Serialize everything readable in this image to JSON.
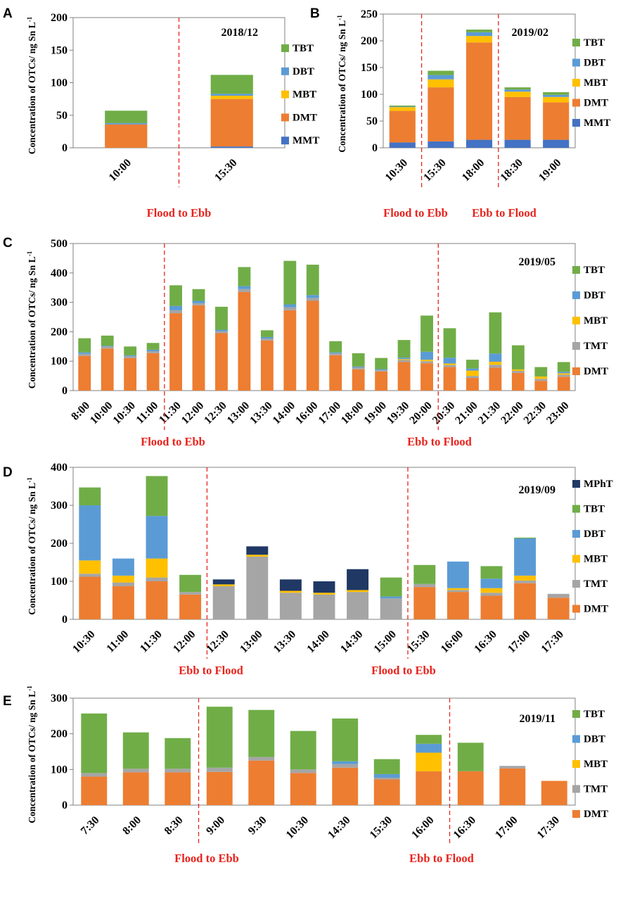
{
  "figure": {
    "ylabel": "Concentration of  OTCs/ ng Sn L",
    "ylabel_sup": "-1"
  },
  "colors": {
    "MMT": "#4472c4",
    "DMT": "#ed7d31",
    "TMT": "#a5a5a5",
    "MBT": "#ffc000",
    "DBT": "#5b9bd5",
    "TBT": "#70ad47",
    "MPhT": "#203864",
    "divider": "#e8231d",
    "tide_text": "#e8231d"
  },
  "chart_data": [
    {
      "panel": "A",
      "type": "bar",
      "stacked": true,
      "title": "2018/12",
      "ylim": [
        0,
        200
      ],
      "yticks": [
        0,
        50,
        100,
        150,
        200
      ],
      "categories": [
        "10:00",
        "15:30"
      ],
      "series": [
        {
          "name": "MMT",
          "values": [
            0,
            2
          ]
        },
        {
          "name": "DMT",
          "values": [
            36,
            73
          ]
        },
        {
          "name": "MBT",
          "values": [
            0,
            5
          ]
        },
        {
          "name": "DBT",
          "values": [
            2,
            3
          ]
        },
        {
          "name": "TBT",
          "values": [
            19,
            29
          ]
        }
      ],
      "legend": [
        "TBT",
        "DBT",
        "MBT",
        "DMT",
        "MMT"
      ],
      "dividers_after": [
        0
      ],
      "tide_labels": [
        "Flood to Ebb"
      ]
    },
    {
      "panel": "B",
      "type": "bar",
      "stacked": true,
      "title": "2019/02",
      "ylim": [
        0,
        250
      ],
      "yticks": [
        0,
        50,
        100,
        150,
        200,
        250
      ],
      "categories": [
        "10:30",
        "15:30",
        "18:00",
        "18:30",
        "19:00"
      ],
      "series": [
        {
          "name": "MMT",
          "values": [
            10,
            12,
            15,
            15,
            15
          ]
        },
        {
          "name": "DMT",
          "values": [
            59,
            101,
            182,
            80,
            70
          ]
        },
        {
          "name": "MBT",
          "values": [
            7,
            15,
            12,
            10,
            10
          ]
        },
        {
          "name": "DBT",
          "values": [
            1,
            8,
            7,
            4,
            4
          ]
        },
        {
          "name": "TBT",
          "values": [
            2,
            8,
            5,
            4,
            5
          ]
        }
      ],
      "legend": [
        "TBT",
        "DBT",
        "MBT",
        "DMT",
        "MMT"
      ],
      "dividers_after": [
        0,
        2
      ],
      "tide_labels": [
        "Flood to Ebb",
        "Ebb to Flood"
      ]
    },
    {
      "panel": "C",
      "type": "bar",
      "stacked": true,
      "title": "2019/05",
      "ylim": [
        0,
        500
      ],
      "yticks": [
        0,
        100,
        200,
        300,
        400,
        500
      ],
      "categories": [
        "8:00",
        "10:00",
        "10:30",
        "11:00",
        "11:30",
        "12:00",
        "12:30",
        "13:00",
        "13:30",
        "14:00",
        "16:00",
        "17:00",
        "18:00",
        "19:00",
        "19:30",
        "20:00",
        "20:30",
        "21:00",
        "21:30",
        "22:00",
        "22:30",
        "23:00"
      ],
      "series": [
        {
          "name": "DMT",
          "values": [
            118,
            143,
            110,
            127,
            263,
            290,
            195,
            335,
            170,
            273,
            305,
            120,
            72,
            65,
            97,
            93,
            80,
            43,
            78,
            60,
            33,
            47
          ]
        },
        {
          "name": "TMT",
          "values": [
            7,
            7,
            7,
            7,
            10,
            7,
            7,
            10,
            7,
            10,
            10,
            7,
            7,
            5,
            7,
            7,
            7,
            7,
            10,
            7,
            7,
            7
          ]
        },
        {
          "name": "MBT",
          "values": [
            0,
            0,
            0,
            0,
            0,
            0,
            0,
            0,
            0,
            0,
            0,
            0,
            0,
            0,
            3,
            5,
            5,
            18,
            10,
            5,
            8,
            5
          ]
        },
        {
          "name": "DBT",
          "values": [
            5,
            2,
            3,
            5,
            15,
            8,
            5,
            10,
            5,
            10,
            10,
            3,
            3,
            3,
            5,
            27,
            20,
            7,
            28,
            0,
            0,
            5
          ]
        },
        {
          "name": "TBT",
          "values": [
            48,
            35,
            30,
            23,
            70,
            40,
            78,
            65,
            23,
            148,
            103,
            38,
            45,
            38,
            60,
            123,
            100,
            30,
            140,
            82,
            32,
            33
          ]
        }
      ],
      "legend": [
        "TBT",
        "DBT",
        "MBT",
        "TMT",
        "DMT"
      ],
      "dividers_after": [
        3,
        15
      ],
      "tide_labels": [
        "Flood to Ebb",
        "Ebb to Flood"
      ]
    },
    {
      "panel": "D",
      "type": "bar",
      "stacked": true,
      "title": "2019/09",
      "ylim": [
        0,
        400
      ],
      "yticks": [
        0,
        100,
        200,
        300,
        400
      ],
      "categories": [
        "10:30",
        "11:00",
        "11:30",
        "12:00",
        "12:30",
        "13:00",
        "13:30",
        "14:00",
        "14:30",
        "15:00",
        "15:30",
        "16:00",
        "16:30",
        "17:00",
        "17:30"
      ],
      "series": [
        {
          "name": "DMT",
          "values": [
            112,
            87,
            100,
            65,
            0,
            0,
            0,
            0,
            0,
            0,
            85,
            72,
            62,
            95,
            57
          ]
        },
        {
          "name": "TMT",
          "values": [
            8,
            10,
            10,
            7,
            87,
            165,
            70,
            65,
            72,
            55,
            8,
            5,
            8,
            7,
            10
          ]
        },
        {
          "name": "MBT",
          "values": [
            35,
            18,
            50,
            0,
            5,
            5,
            5,
            5,
            5,
            0,
            0,
            5,
            12,
            13,
            0
          ]
        },
        {
          "name": "DBT",
          "values": [
            145,
            45,
            112,
            0,
            0,
            0,
            0,
            0,
            0,
            5,
            0,
            70,
            25,
            98,
            0
          ]
        },
        {
          "name": "TBT",
          "values": [
            47,
            0,
            105,
            45,
            0,
            0,
            0,
            0,
            0,
            50,
            50,
            0,
            33,
            2,
            0
          ]
        },
        {
          "name": "MPhT",
          "values": [
            0,
            0,
            0,
            0,
            13,
            22,
            30,
            30,
            55,
            0,
            0,
            0,
            0,
            0,
            0
          ]
        }
      ],
      "legend": [
        "MPhT",
        "TBT",
        "DBT",
        "MBT",
        "TMT",
        "DMT"
      ],
      "dividers_after": [
        3,
        9
      ],
      "tide_labels": [
        "Ebb to Flood",
        "Flood to Ebb"
      ]
    },
    {
      "panel": "E",
      "type": "bar",
      "stacked": true,
      "title": "2019/11",
      "ylim": [
        0,
        300
      ],
      "yticks": [
        0,
        100,
        200,
        300
      ],
      "categories": [
        "7:30",
        "8:00",
        "8:30",
        "9:00",
        "9:30",
        "10:30",
        "14:30",
        "15:30",
        "16:00",
        "16:30",
        "17:00",
        "17:30"
      ],
      "series": [
        {
          "name": "DMT",
          "values": [
            80,
            92,
            92,
            93,
            125,
            90,
            105,
            72,
            95,
            95,
            103,
            68
          ]
        },
        {
          "name": "TMT",
          "values": [
            10,
            10,
            10,
            12,
            10,
            10,
            10,
            5,
            0,
            0,
            7,
            0
          ]
        },
        {
          "name": "MBT",
          "values": [
            0,
            0,
            0,
            0,
            0,
            0,
            0,
            0,
            52,
            0,
            0,
            0
          ]
        },
        {
          "name": "DBT",
          "values": [
            0,
            0,
            0,
            0,
            0,
            0,
            8,
            10,
            25,
            0,
            0,
            0
          ]
        },
        {
          "name": "TBT",
          "values": [
            167,
            102,
            86,
            171,
            132,
            108,
            120,
            42,
            25,
            80,
            0,
            0
          ]
        }
      ],
      "legend": [
        "TBT",
        "DBT",
        "MBT",
        "TMT",
        "DMT"
      ],
      "dividers_after": [
        2,
        8
      ],
      "tide_labels": [
        "Flood to Ebb",
        "Ebb to Flood"
      ]
    }
  ]
}
